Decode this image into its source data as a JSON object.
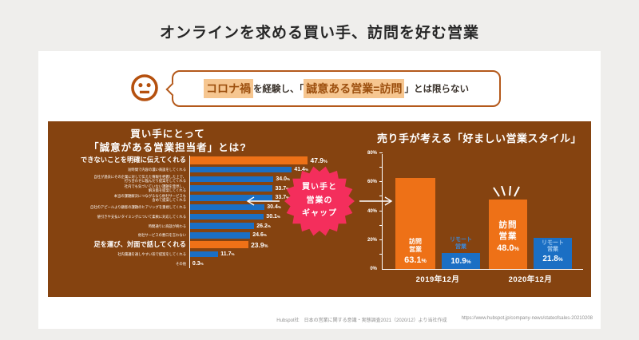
{
  "header": {
    "title": "オンラインを求める買い手、訪問を好む営業"
  },
  "callout": {
    "icon": "neutral-face",
    "segments": [
      {
        "text": "コロナ禍",
        "highlight": true
      },
      {
        "text": "を経験し、「",
        "highlight": false
      },
      {
        "text": "誠意ある営業=訪問",
        "highlight": true
      },
      {
        "text": "」とは限らない",
        "highlight": false
      }
    ]
  },
  "gap_badge": {
    "label": "買い手と\n営業の\nギャップ"
  },
  "percent_sign": "%",
  "chart_data": [
    {
      "type": "bar",
      "orientation": "horizontal",
      "title": "買い手にとって\n「誠意がある営業担当者」とは?",
      "unit": "%",
      "xlim": [
        0,
        50
      ],
      "bar_colors": {
        "emphasis": "#ee7117",
        "default": "#1b6fc4"
      },
      "rows": [
        {
          "label": "できないことを明確に伝えてくれる",
          "value": 47.9,
          "display": "47.9",
          "emphasis": true
        },
        {
          "label": "短時間で内容の濃い商談をしてくれる",
          "value": 41.4,
          "display": "41.4",
          "emphasis": false
        },
        {
          "label": "自社が過去にその企業に対して伝えた情報を把握した上で、\n打ち合わせに臨んだり提案をしてくれる",
          "value": 34.0,
          "display": "34.0",
          "emphasis": false
        },
        {
          "label": "社内でも気づいていない課題を発見し、\n解決策を提案してくれる",
          "value": 33.7,
          "display": "33.7",
          "emphasis": false
        },
        {
          "label": "本当の課題解決につながるなら他社サービスも\n含めて提案してくれる",
          "value": 33.7,
          "display": "33.7",
          "emphasis": false
        },
        {
          "label": "自社のアピールより顧客の課題のヒアリングを重視してくれる",
          "value": 30.4,
          "display": "30.4",
          "emphasis": false
        },
        {
          "label": "値引きや支払いタイミングについて柔軟に対応してくれる",
          "value": 30.1,
          "display": "30.1",
          "emphasis": false
        },
        {
          "label": "時間通りに商談が終わる",
          "value": 26.2,
          "display": "26.2",
          "emphasis": false
        },
        {
          "label": "他社サービスの悪口を言わない",
          "value": 24.6,
          "display": "24.6",
          "emphasis": false
        },
        {
          "label": "足を運び、対面で話してくれる",
          "value": 23.9,
          "display": "23.9",
          "emphasis": true
        },
        {
          "label": "社内稟議を通しやすい形で提案をしてくれる",
          "value": 11.7,
          "display": "11.7",
          "emphasis": false
        },
        {
          "label": "その他",
          "value": 0.3,
          "display": "0.3",
          "emphasis": false
        }
      ]
    },
    {
      "type": "bar",
      "orientation": "vertical",
      "title": "売り手が考える「好ましい営業スタイル」",
      "unit": "%",
      "ylim": [
        0,
        80
      ],
      "ytick_labels": [
        "0%",
        "20%",
        "40%",
        "60%",
        "80%"
      ],
      "colors": {
        "hōmon": "#ee7117",
        "remote": "#1b6fc4"
      },
      "groups": [
        {
          "category": "2019年12月",
          "series": [
            {
              "name": "訪問営業",
              "value": 63.1,
              "display": "63.1"
            },
            {
              "name": "リモート営業",
              "value": 10.9,
              "display": "10.9"
            }
          ]
        },
        {
          "category": "2020年12月",
          "series": [
            {
              "name": "訪問営業",
              "value": 48.0,
              "display": "48.0"
            },
            {
              "name": "リモート営業",
              "value": 21.8,
              "display": "21.8"
            }
          ]
        }
      ]
    }
  ],
  "footer": {
    "source": "Hubspot社　日本の営業に関する意識・実態調査2021（2020/12）より当社作成",
    "url": "https://www.hubspot.jp/company-news/stateofsales-20210208"
  }
}
